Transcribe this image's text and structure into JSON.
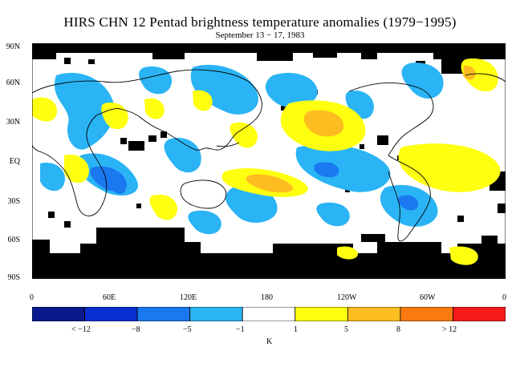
{
  "title": "HIRS CHN 12 Pentad brightness temperature anomalies (1979−1995)",
  "subtitle": "September 13 − 17, 1983",
  "lat_ticks": [
    "90N",
    "60N",
    "30N",
    "EQ",
    "30S",
    "60S",
    "90S"
  ],
  "lon_ticks": [
    "0",
    "60E",
    "120E",
    "180",
    "120W",
    "60W",
    "0"
  ],
  "colorbar": {
    "colors": [
      "#0a1a8c",
      "#0a2fd0",
      "#1a78f0",
      "#2ab4f5",
      "#ffffff",
      "#ffff10",
      "#fdbc20",
      "#fa7a10",
      "#f51a1a"
    ],
    "labels": [
      "< −12",
      "−8",
      "−5",
      "−1",
      "1",
      "5",
      "8",
      "> 12"
    ],
    "unit": "K"
  },
  "map": {
    "missing_color": "#000000",
    "ocean_color": "#ffffff"
  }
}
